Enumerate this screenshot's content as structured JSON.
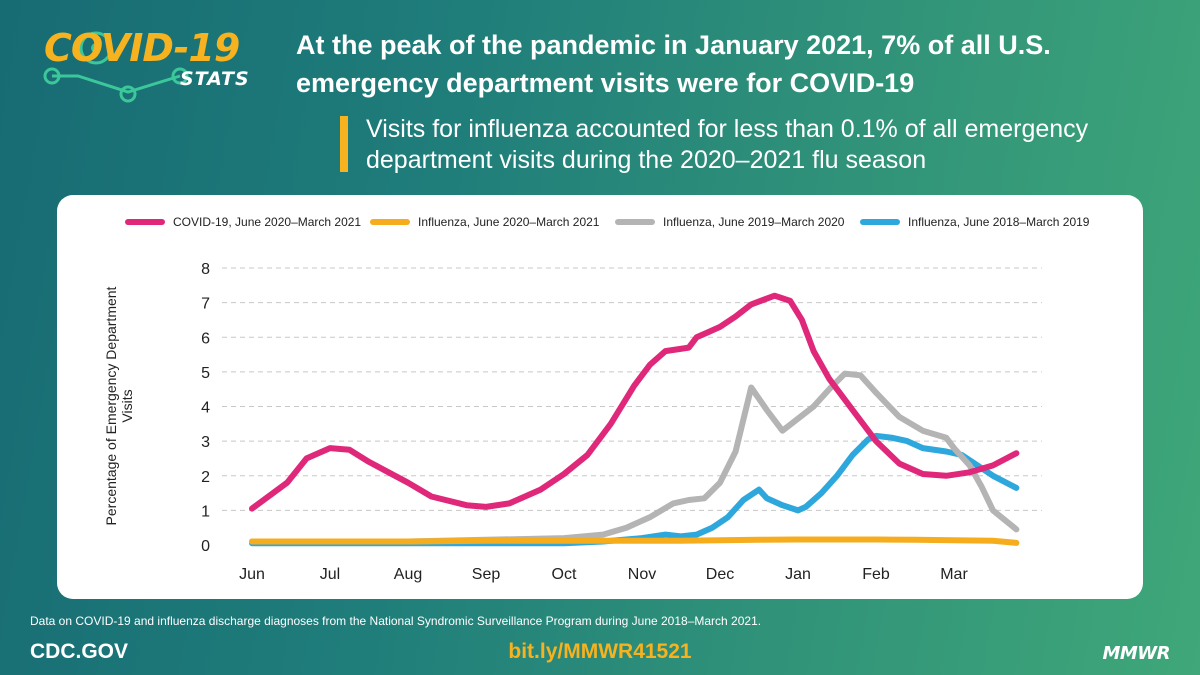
{
  "logo": {
    "title": "COVID-19",
    "subtitle": "STATS"
  },
  "headline": "At the peak of the pandemic in January 2021, 7% of all U.S. emergency department visits were for COVID-19",
  "subheadline": "Visits for influenza accounted for less than 0.1% of all emergency department visits during the 2020–2021 flu season",
  "colors": {
    "covid": "#e0287a",
    "flu2020": "#f6ad1d",
    "flu2019": "#b4b4b4",
    "flu2018": "#2ea8dc",
    "accent": "#f6b21f"
  },
  "chart_data": {
    "type": "line",
    "title": "",
    "xlabel": "",
    "ylabel": "Percentage of Emergency Department Visits",
    "ylim": [
      0,
      8
    ],
    "yticks": [
      0,
      1,
      2,
      3,
      4,
      5,
      6,
      7,
      8
    ],
    "categories": [
      "Jun",
      "Jul",
      "Aug",
      "Sep",
      "Oct",
      "Nov",
      "Dec",
      "Jan",
      "Feb",
      "Mar"
    ],
    "xlim": [
      0,
      9.8
    ],
    "grid": "horizontal dashed",
    "legend_position": "top",
    "series": [
      {
        "name": "COVID-19, June 2020–March 2021",
        "color": "#e0287a",
        "x": [
          0,
          0.45,
          0.7,
          1.0,
          1.25,
          1.5,
          2.0,
          2.3,
          2.75,
          3.0,
          3.3,
          3.7,
          4.0,
          4.3,
          4.6,
          4.9,
          5.1,
          5.3,
          5.6,
          5.7,
          5.85,
          6.0,
          6.2,
          6.4,
          6.7,
          6.9,
          7.05,
          7.2,
          7.4,
          7.7,
          8.0,
          8.3,
          8.6,
          8.9,
          9.2,
          9.5,
          9.8
        ],
        "values": [
          1.05,
          1.8,
          2.5,
          2.8,
          2.75,
          2.4,
          1.8,
          1.4,
          1.15,
          1.1,
          1.2,
          1.6,
          2.05,
          2.6,
          3.5,
          4.6,
          5.2,
          5.6,
          5.7,
          6.0,
          6.15,
          6.3,
          6.6,
          6.95,
          7.2,
          7.05,
          6.5,
          5.6,
          4.8,
          3.9,
          3.0,
          2.35,
          2.05,
          2.0,
          2.1,
          2.3,
          2.65
        ]
      },
      {
        "name": "Influenza, June 2020–March 2021",
        "color": "#f6ad1d",
        "x": [
          0,
          1,
          2,
          3,
          4,
          5,
          5.5,
          6,
          6.5,
          7,
          7.5,
          8,
          8.5,
          9,
          9.5,
          9.8
        ],
        "values": [
          0.1,
          0.1,
          0.1,
          0.12,
          0.12,
          0.12,
          0.12,
          0.14,
          0.15,
          0.16,
          0.16,
          0.16,
          0.15,
          0.14,
          0.12,
          0.06
        ]
      },
      {
        "name": "Influenza, June 2019–March 2020",
        "color": "#b4b4b4",
        "x": [
          0,
          1,
          2,
          3,
          4,
          4.5,
          4.8,
          5.1,
          5.4,
          5.6,
          5.8,
          6.0,
          6.2,
          6.4,
          6.6,
          6.8,
          7.0,
          7.2,
          7.4,
          7.6,
          7.8,
          8.0,
          8.15,
          8.3,
          8.6,
          8.9,
          9.0,
          9.2,
          9.35,
          9.5,
          9.8
        ],
        "values": [
          0.1,
          0.1,
          0.1,
          0.15,
          0.2,
          0.3,
          0.5,
          0.8,
          1.2,
          1.3,
          1.35,
          1.8,
          2.7,
          4.55,
          3.9,
          3.3,
          3.65,
          4.0,
          4.5,
          4.95,
          4.9,
          4.4,
          4.05,
          3.7,
          3.3,
          3.1,
          2.8,
          2.3,
          1.7,
          1.0,
          0.45
        ]
      },
      {
        "name": "Influenza, June 2018–March 2019",
        "color": "#2ea8dc",
        "x": [
          0,
          1,
          2,
          3,
          4,
          4.5,
          5.0,
          5.3,
          5.5,
          5.7,
          5.9,
          6.1,
          6.3,
          6.5,
          6.6,
          6.8,
          7.0,
          7.1,
          7.3,
          7.5,
          7.7,
          7.9,
          8.0,
          8.2,
          8.4,
          8.6,
          8.9,
          9.1,
          9.3,
          9.5,
          9.8
        ],
        "values": [
          0.05,
          0.05,
          0.05,
          0.05,
          0.05,
          0.1,
          0.2,
          0.3,
          0.25,
          0.3,
          0.5,
          0.8,
          1.3,
          1.6,
          1.35,
          1.15,
          1.0,
          1.1,
          1.5,
          2.0,
          2.6,
          3.05,
          3.15,
          3.1,
          3.0,
          2.8,
          2.7,
          2.6,
          2.3,
          2.0,
          1.65
        ]
      }
    ]
  },
  "footnote": "Data on COVID-19 and influenza discharge diagnoses from the National Syndromic Surveillance Program during June 2018–March 2021.",
  "footer": {
    "site": "CDC.GOV",
    "link": "bit.ly/MMWR41521",
    "brand": "MMWR"
  }
}
